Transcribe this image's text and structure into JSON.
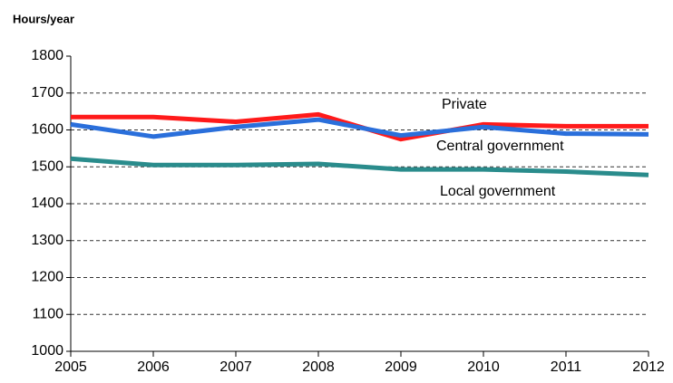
{
  "chart_data": {
    "type": "line",
    "title": "Hours/year",
    "x": [
      2005,
      2006,
      2007,
      2008,
      2009,
      2010,
      2011,
      2012
    ],
    "xlim": [
      2005,
      2012
    ],
    "xticks": [
      2005,
      2006,
      2007,
      2008,
      2009,
      2010,
      2011,
      2012
    ],
    "ylim": [
      1000,
      1800
    ],
    "yticks": [
      1000,
      1100,
      1200,
      1300,
      1400,
      1500,
      1600,
      1700,
      1800
    ],
    "grid": true,
    "series": [
      {
        "name": "Private",
        "color": "#ff1a1a",
        "values": [
          1635,
          1635,
          1622,
          1642,
          1575,
          1615,
          1610,
          1610
        ]
      },
      {
        "name": "Central government",
        "color": "#2a6fdb",
        "values": [
          1615,
          1582,
          1608,
          1628,
          1585,
          1608,
          1590,
          1588
        ]
      },
      {
        "name": "Local government",
        "color": "#2a8c8c",
        "values": [
          1522,
          1505,
          1505,
          1508,
          1493,
          1493,
          1487,
          1478
        ]
      }
    ]
  }
}
